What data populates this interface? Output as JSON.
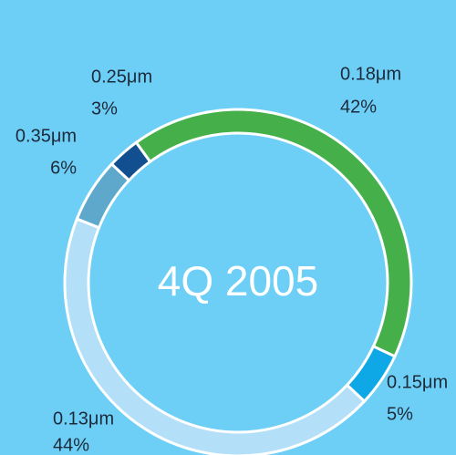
{
  "chart_data": {
    "type": "donut",
    "title": "4Q 2005",
    "categories": [
      "0.18μm",
      "0.15μm",
      "0.13μm",
      "0.35μm",
      "0.25μm"
    ],
    "values": [
      42,
      5,
      44,
      6,
      3
    ],
    "value_labels": [
      "42%",
      "5%",
      "44%",
      "6%",
      "3%"
    ],
    "colors": [
      "#45b04a",
      "#0ea8e6",
      "#b3e0f8",
      "#5ea8cc",
      "#124f90"
    ]
  }
}
